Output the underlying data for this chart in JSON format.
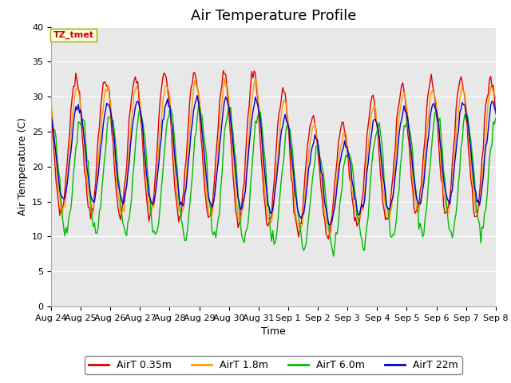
{
  "title": "Air Temperature Profile",
  "xlabel": "Time",
  "ylabel": "Air Temperature (C)",
  "ylim": [
    0,
    40
  ],
  "annotation": "TZ_tmet",
  "annotation_color": "#cc0000",
  "annotation_bg": "#ffffdd",
  "annotation_border": "#aaaa00",
  "background_color": "#e8e8e8",
  "line_colors": {
    "AirT 0.35m": "#dd0000",
    "AirT 1.8m": "#ff9900",
    "AirT 6.0m": "#00bb00",
    "AirT 22m": "#0000cc"
  },
  "xtick_labels": [
    "Aug 24",
    "Aug 25",
    "Aug 26",
    "Aug 27",
    "Aug 28",
    "Aug 29",
    "Aug 30",
    "Aug 31",
    "Sep 1",
    "Sep 2",
    "Sep 3",
    "Sep 4",
    "Sep 5",
    "Sep 6",
    "Sep 7",
    "Sep 8"
  ],
  "ytick_labels": [
    0,
    5,
    10,
    15,
    20,
    25,
    30,
    35,
    40
  ],
  "title_fontsize": 13,
  "axis_label_fontsize": 9,
  "tick_fontsize": 8
}
